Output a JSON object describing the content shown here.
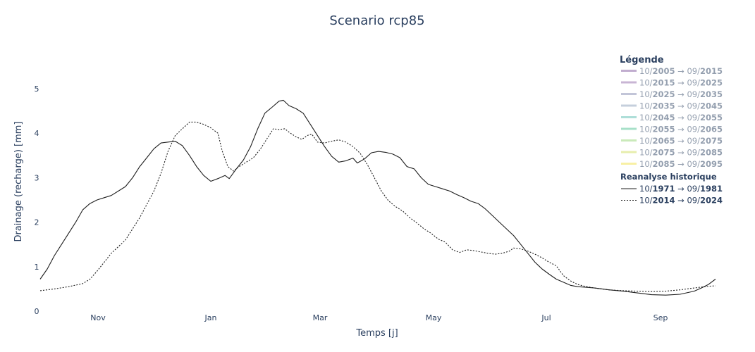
{
  "chart_data": {
    "type": "line",
    "title": "Scenario rcp85",
    "xlabel": "Temps [j]",
    "ylabel": "Drainage (recharge) [mm]",
    "x_ticks": [
      "Nov",
      "Jan",
      "Mar",
      "May",
      "Jul",
      "Sep"
    ],
    "y_ticks": [
      "0",
      "1",
      "2",
      "3",
      "4",
      "5"
    ],
    "ylim": [
      0,
      5.3
    ],
    "grid": false,
    "legend_position": "right",
    "legend": {
      "title": "Légende",
      "group_title": "Reanalyse historique",
      "scenario_entries": [
        {
          "pre": "10/",
          "from": "2005",
          "mid": " → 09/",
          "to": "2015",
          "color": "#8e6aa8"
        },
        {
          "pre": "10/",
          "from": "2015",
          "mid": " → 09/",
          "to": "2025",
          "color": "#9a78b0"
        },
        {
          "pre": "10/",
          "from": "2025",
          "mid": " → 09/",
          "to": "2035",
          "color": "#8f95b8"
        },
        {
          "pre": "10/",
          "from": "2035",
          "mid": " → 09/",
          "to": "2045",
          "color": "#95a8c0"
        },
        {
          "pre": "10/",
          "from": "2045",
          "mid": " → 09/",
          "to": "2055",
          "color": "#6cc3b8"
        },
        {
          "pre": "10/",
          "from": "2055",
          "mid": " → 09/",
          "to": "2065",
          "color": "#5ec79a"
        },
        {
          "pre": "10/",
          "from": "2065",
          "mid": " → 09/",
          "to": "2075",
          "color": "#9ed882"
        },
        {
          "pre": "10/",
          "from": "2075",
          "mid": " → 09/",
          "to": "2085",
          "color": "#d4e06a"
        },
        {
          "pre": "10/",
          "from": "2085",
          "mid": " → 09/",
          "to": "2095",
          "color": "#f3e45a"
        }
      ]
    },
    "series": [
      {
        "pre": "10/",
        "from": "1971",
        "mid": " → 09/",
        "to": "1981",
        "line_style": "solid",
        "color": "#1e1e1e",
        "points": [
          [
            0,
            0.72
          ],
          [
            5,
            0.95
          ],
          [
            10,
            1.25
          ],
          [
            15,
            1.5
          ],
          [
            20,
            1.75
          ],
          [
            25,
            2.0
          ],
          [
            30,
            2.28
          ],
          [
            35,
            2.42
          ],
          [
            40,
            2.5
          ],
          [
            45,
            2.55
          ],
          [
            50,
            2.6
          ],
          [
            55,
            2.7
          ],
          [
            60,
            2.8
          ],
          [
            65,
            3.0
          ],
          [
            70,
            3.25
          ],
          [
            75,
            3.45
          ],
          [
            80,
            3.65
          ],
          [
            85,
            3.78
          ],
          [
            90,
            3.8
          ],
          [
            95,
            3.82
          ],
          [
            100,
            3.72
          ],
          [
            105,
            3.5
          ],
          [
            110,
            3.25
          ],
          [
            115,
            3.05
          ],
          [
            120,
            2.92
          ],
          [
            125,
            2.98
          ],
          [
            130,
            3.05
          ],
          [
            133,
            2.98
          ],
          [
            138,
            3.2
          ],
          [
            143,
            3.4
          ],
          [
            148,
            3.7
          ],
          [
            153,
            4.1
          ],
          [
            158,
            4.45
          ],
          [
            163,
            4.58
          ],
          [
            168,
            4.72
          ],
          [
            171,
            4.74
          ],
          [
            175,
            4.62
          ],
          [
            180,
            4.55
          ],
          [
            185,
            4.45
          ],
          [
            190,
            4.2
          ],
          [
            195,
            3.95
          ],
          [
            200,
            3.7
          ],
          [
            205,
            3.48
          ],
          [
            210,
            3.35
          ],
          [
            215,
            3.38
          ],
          [
            220,
            3.44
          ],
          [
            223,
            3.33
          ],
          [
            228,
            3.42
          ],
          [
            233,
            3.56
          ],
          [
            238,
            3.59
          ],
          [
            243,
            3.57
          ],
          [
            248,
            3.53
          ],
          [
            253,
            3.45
          ],
          [
            258,
            3.25
          ],
          [
            263,
            3.2
          ],
          [
            268,
            3.0
          ],
          [
            273,
            2.85
          ],
          [
            278,
            2.8
          ],
          [
            283,
            2.75
          ],
          [
            288,
            2.7
          ],
          [
            293,
            2.62
          ],
          [
            298,
            2.55
          ],
          [
            303,
            2.47
          ],
          [
            308,
            2.42
          ],
          [
            313,
            2.3
          ],
          [
            318,
            2.15
          ],
          [
            323,
            2.0
          ],
          [
            328,
            1.85
          ],
          [
            333,
            1.7
          ],
          [
            338,
            1.5
          ],
          [
            343,
            1.3
          ],
          [
            348,
            1.1
          ],
          [
            353,
            0.95
          ],
          [
            358,
            0.83
          ],
          [
            363,
            0.72
          ],
          [
            368,
            0.65
          ],
          [
            373,
            0.58
          ],
          [
            378,
            0.55
          ],
          [
            383,
            0.54
          ],
          [
            390,
            0.52
          ],
          [
            400,
            0.48
          ],
          [
            410,
            0.45
          ],
          [
            420,
            0.41
          ],
          [
            430,
            0.37
          ],
          [
            440,
            0.36
          ],
          [
            450,
            0.38
          ],
          [
            460,
            0.45
          ],
          [
            465,
            0.52
          ],
          [
            470,
            0.6
          ],
          [
            475,
            0.72
          ]
        ]
      },
      {
        "pre": "10/",
        "from": "2014",
        "mid": " → 09/",
        "to": "2024",
        "line_style": "dotted",
        "color": "#1e1e1e",
        "points": [
          [
            0,
            0.46
          ],
          [
            10,
            0.5
          ],
          [
            20,
            0.55
          ],
          [
            30,
            0.62
          ],
          [
            35,
            0.72
          ],
          [
            40,
            0.9
          ],
          [
            45,
            1.1
          ],
          [
            50,
            1.3
          ],
          [
            55,
            1.45
          ],
          [
            60,
            1.6
          ],
          [
            65,
            1.85
          ],
          [
            70,
            2.1
          ],
          [
            75,
            2.4
          ],
          [
            80,
            2.7
          ],
          [
            85,
            3.1
          ],
          [
            90,
            3.6
          ],
          [
            95,
            3.95
          ],
          [
            100,
            4.1
          ],
          [
            105,
            4.25
          ],
          [
            110,
            4.25
          ],
          [
            115,
            4.2
          ],
          [
            120,
            4.12
          ],
          [
            125,
            4.0
          ],
          [
            128,
            3.6
          ],
          [
            132,
            3.25
          ],
          [
            136,
            3.15
          ],
          [
            140,
            3.25
          ],
          [
            145,
            3.35
          ],
          [
            150,
            3.45
          ],
          [
            155,
            3.65
          ],
          [
            160,
            3.9
          ],
          [
            164,
            4.1
          ],
          [
            168,
            4.08
          ],
          [
            172,
            4.1
          ],
          [
            176,
            4.0
          ],
          [
            180,
            3.92
          ],
          [
            184,
            3.86
          ],
          [
            188,
            3.95
          ],
          [
            191,
            3.98
          ],
          [
            195,
            3.8
          ],
          [
            200,
            3.78
          ],
          [
            205,
            3.82
          ],
          [
            210,
            3.85
          ],
          [
            215,
            3.8
          ],
          [
            220,
            3.7
          ],
          [
            225,
            3.55
          ],
          [
            230,
            3.3
          ],
          [
            235,
            3.0
          ],
          [
            240,
            2.7
          ],
          [
            245,
            2.48
          ],
          [
            250,
            2.35
          ],
          [
            255,
            2.25
          ],
          [
            260,
            2.1
          ],
          [
            265,
            1.98
          ],
          [
            270,
            1.85
          ],
          [
            275,
            1.75
          ],
          [
            280,
            1.62
          ],
          [
            285,
            1.55
          ],
          [
            290,
            1.38
          ],
          [
            295,
            1.32
          ],
          [
            300,
            1.38
          ],
          [
            305,
            1.36
          ],
          [
            310,
            1.33
          ],
          [
            315,
            1.3
          ],
          [
            320,
            1.28
          ],
          [
            325,
            1.3
          ],
          [
            330,
            1.35
          ],
          [
            333,
            1.42
          ],
          [
            338,
            1.4
          ],
          [
            343,
            1.35
          ],
          [
            348,
            1.28
          ],
          [
            353,
            1.2
          ],
          [
            358,
            1.1
          ],
          [
            363,
            1.02
          ],
          [
            368,
            0.8
          ],
          [
            373,
            0.68
          ],
          [
            378,
            0.6
          ],
          [
            383,
            0.56
          ],
          [
            390,
            0.52
          ],
          [
            400,
            0.48
          ],
          [
            410,
            0.46
          ],
          [
            420,
            0.45
          ],
          [
            430,
            0.44
          ],
          [
            440,
            0.45
          ],
          [
            450,
            0.48
          ],
          [
            460,
            0.52
          ],
          [
            470,
            0.56
          ],
          [
            475,
            0.57
          ]
        ]
      }
    ]
  }
}
